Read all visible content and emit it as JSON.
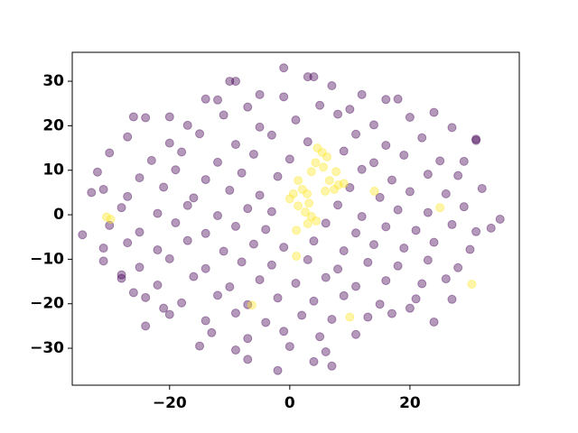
{
  "chart_data": {
    "type": "scatter",
    "xlim": [
      -36.2,
      38.2
    ],
    "ylim": [
      -38.3,
      36.5
    ],
    "xticks": [
      {
        "value": -20,
        "label": "−20"
      },
      0,
      20
    ],
    "yticks": [
      {
        "value": -30,
        "label": "−30"
      },
      {
        "value": -20,
        "label": "−20"
      },
      {
        "value": -10,
        "label": "−10"
      },
      0,
      10,
      20,
      30
    ],
    "grid": false,
    "series": [
      {
        "color": "#440154",
        "x": [
          -34.5,
          -33,
          35,
          33.5,
          -1,
          3,
          4,
          7,
          -10,
          -9,
          -31,
          -28,
          -26,
          -24,
          -21,
          -15,
          -7,
          -2,
          4,
          7,
          13,
          20,
          27,
          31,
          29,
          -26,
          -20,
          -14,
          -5,
          12,
          18,
          24,
          -12,
          -7,
          -1,
          5,
          10,
          16,
          -24,
          -17,
          -11,
          -5,
          1,
          8,
          14,
          20,
          27,
          -27,
          -20,
          -15,
          -9,
          -3,
          3,
          11,
          16,
          22,
          31,
          -30,
          -23,
          -18,
          -12,
          -6,
          0,
          9,
          14,
          19,
          25,
          -32,
          -25,
          -19,
          -14,
          -8,
          -2,
          12,
          17,
          23,
          28,
          -31,
          -27,
          -21,
          -16,
          -10,
          -5,
          10,
          15,
          20,
          26,
          32,
          -28,
          -22,
          -17,
          -12,
          -7,
          -3,
          8,
          12,
          18,
          23,
          29,
          -30,
          -25,
          -19,
          -14,
          -9,
          -4,
          6,
          11,
          16,
          21,
          27,
          31,
          -27,
          -22,
          -17,
          -11,
          -6,
          -1,
          4,
          9,
          14,
          19,
          24,
          30,
          -31,
          -25,
          -20,
          -14,
          -8,
          -3,
          3,
          8,
          13,
          18,
          23,
          28,
          -28,
          -22,
          -16,
          -10,
          -5,
          1,
          6,
          11,
          16,
          22,
          26,
          -24,
          -18,
          -12,
          -7,
          -2,
          4,
          9,
          15,
          21,
          -20,
          -14,
          -9,
          -4,
          2,
          7,
          17,
          24,
          -13,
          -7,
          -1,
          5,
          11,
          -9,
          0,
          6
        ],
        "values": [
          -4.5,
          5,
          -1,
          -3,
          33,
          31,
          31,
          29,
          30,
          30,
          -7.5,
          -13.5,
          -17.5,
          -25,
          -21,
          -29.5,
          -32.5,
          -35,
          -33,
          -34,
          -23,
          -21,
          -19,
          17,
          12,
          22,
          22,
          26,
          27,
          27,
          26,
          23,
          25.8,
          24.2,
          26.5,
          24.6,
          23.7,
          25.9,
          21.8,
          20.1,
          22.4,
          19.7,
          21.3,
          22.6,
          20.2,
          21.9,
          19.6,
          17.5,
          16.1,
          18.2,
          15.8,
          17.9,
          16.4,
          18.1,
          15.6,
          17.3,
          16.7,
          13.9,
          12.2,
          14.1,
          11.8,
          13.6,
          12.5,
          14.3,
          11.7,
          13.4,
          12.1,
          9.6,
          8.3,
          10.1,
          7.9,
          9.4,
          8.6,
          10.2,
          7.8,
          9.1,
          8.8,
          5.7,
          4.1,
          6.2,
          3.8,
          5.5,
          4.4,
          6.1,
          3.9,
          5.2,
          4.7,
          5.9,
          1.6,
          0.3,
          2.1,
          -0.2,
          1.4,
          0.7,
          2.2,
          -0.4,
          1.1,
          0.5,
          1.8,
          -2.4,
          -3.9,
          -1.8,
          -4.2,
          -2.6,
          -3.3,
          -1.9,
          -4.1,
          -2.7,
          -3.5,
          -2.2,
          -3.8,
          -6.3,
          -7.9,
          -5.8,
          -8.2,
          -6.6,
          -7.3,
          -5.9,
          -8.1,
          -6.7,
          -7.5,
          -6.2,
          -7.8,
          -10.4,
          -11.8,
          -9.9,
          -12.1,
          -10.6,
          -11.3,
          -10.1,
          -12.2,
          -10.7,
          -11.5,
          -10.2,
          -11.9,
          -14.3,
          -15.8,
          -13.9,
          -16.2,
          -14.6,
          -15.4,
          -14.1,
          -16.1,
          -14.8,
          -15.5,
          -14.4,
          -18.6,
          -19.8,
          -18.1,
          -20.2,
          -18.7,
          -19.4,
          -18.2,
          -20.1,
          -18.9,
          -22.4,
          -23.8,
          -22.1,
          -24.2,
          -22.6,
          -23.5,
          -22.2,
          -24.1,
          -26.5,
          -27.8,
          -26.2,
          -27.4,
          -26.9,
          -30.4,
          -29.6,
          -30.8
        ]
      },
      {
        "color": "#fde725",
        "x": [
          -30.5,
          -29.8,
          4.6,
          5.4,
          6.2,
          4.3,
          5.6,
          3.6,
          1.4,
          2.1,
          0.6,
          2.9,
          5.9,
          7.4,
          1.4,
          2.6,
          3.6,
          4.4,
          1.1,
          14.1,
          25,
          30.3,
          -6.3,
          10,
          1.1,
          7.7,
          6.6,
          8.1,
          0,
          3.2,
          9,
          3
        ],
        "values": [
          -0.5,
          -1,
          15,
          14,
          13,
          11.7,
          10.7,
          9.7,
          7.7,
          5.7,
          4.7,
          4.7,
          5.3,
          5.7,
          2,
          0.6,
          -0.4,
          -1.4,
          -3.5,
          5.3,
          1.6,
          -15.6,
          -20.3,
          -23,
          -9.3,
          9.7,
          7.7,
          6.7,
          3.6,
          2.6,
          7,
          -2
        ]
      }
    ]
  }
}
